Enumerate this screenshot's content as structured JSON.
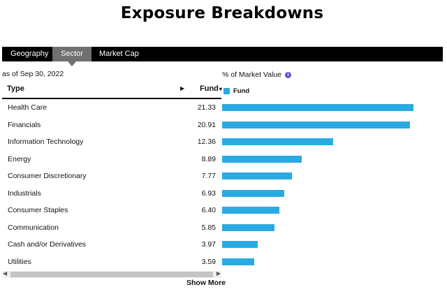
{
  "title": "Exposure Breakdowns",
  "tabs": [
    {
      "label": "Geography",
      "active": false
    },
    {
      "label": "Sector",
      "active": true
    },
    {
      "label": "Market Cap",
      "active": false
    }
  ],
  "as_of": "as of Sep 30, 2022",
  "percent_label": "% of Market Value",
  "header": {
    "type": "Type",
    "fund": "Fund",
    "sort_caret": "▾",
    "arrow": "▶"
  },
  "legend": {
    "fund": "Fund"
  },
  "colors": {
    "bar": "#2aaae2",
    "tab_active": "#707070",
    "tabbar": "#000000"
  },
  "icons": {
    "info": "info-icon"
  },
  "chart_data": {
    "type": "bar",
    "categories": [
      "Health Care",
      "Financials",
      "Information Technology",
      "Energy",
      "Consumer Discretionary",
      "Industrials",
      "Consumer Staples",
      "Communication",
      "Cash and/or Derivatives",
      "Utilities"
    ],
    "series": [
      {
        "name": "Fund",
        "values": [
          21.33,
          20.91,
          12.36,
          8.89,
          7.77,
          6.93,
          6.4,
          5.85,
          3.97,
          3.59
        ]
      }
    ]
  },
  "rows": [
    {
      "label": "Health Care",
      "value": "21.33"
    },
    {
      "label": "Financials",
      "value": "20.91"
    },
    {
      "label": "Information Technology",
      "value": "12.36"
    },
    {
      "label": "Energy",
      "value": "8.89"
    },
    {
      "label": "Consumer Discretionary",
      "value": "7.77"
    },
    {
      "label": "Industrials",
      "value": "6.93"
    },
    {
      "label": "Consumer Staples",
      "value": "6.40"
    },
    {
      "label": "Communication",
      "value": "5.85"
    },
    {
      "label": "Cash and/or Derivatives",
      "value": "3.97"
    },
    {
      "label": "Utilities",
      "value": "3.59"
    }
  ],
  "show_more": "Show More"
}
